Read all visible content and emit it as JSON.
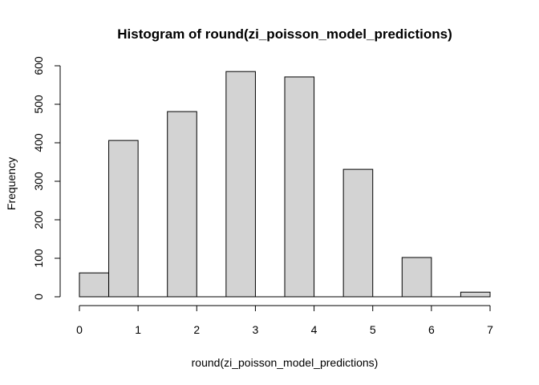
{
  "chart_data": {
    "type": "bar",
    "title": "Histogram of round(zi_poisson_model_predictions)",
    "xlabel": "round(zi_poisson_model_predictions)",
    "ylabel": "Frequency",
    "xlim": [
      0,
      7
    ],
    "ylim": [
      0,
      600
    ],
    "x_ticks": [
      "0",
      "1",
      "2",
      "3",
      "4",
      "5",
      "6",
      "7"
    ],
    "y_ticks": [
      "0",
      "100",
      "200",
      "300",
      "400",
      "500",
      "600"
    ],
    "bins": [
      {
        "start": 0.0,
        "end": 0.5,
        "value": 62
      },
      {
        "start": 0.5,
        "end": 1.0,
        "value": 406
      },
      {
        "start": 1.0,
        "end": 1.5,
        "value": 0
      },
      {
        "start": 1.5,
        "end": 2.0,
        "value": 481
      },
      {
        "start": 2.0,
        "end": 2.5,
        "value": 0
      },
      {
        "start": 2.5,
        "end": 3.0,
        "value": 585
      },
      {
        "start": 3.0,
        "end": 3.5,
        "value": 0
      },
      {
        "start": 3.5,
        "end": 4.0,
        "value": 571
      },
      {
        "start": 4.0,
        "end": 4.5,
        "value": 0
      },
      {
        "start": 4.5,
        "end": 5.0,
        "value": 331
      },
      {
        "start": 5.0,
        "end": 5.5,
        "value": 0
      },
      {
        "start": 5.5,
        "end": 6.0,
        "value": 102
      },
      {
        "start": 6.0,
        "end": 6.5,
        "value": 0
      },
      {
        "start": 6.5,
        "end": 7.0,
        "value": 12
      }
    ],
    "grid": false,
    "legend": "none"
  }
}
